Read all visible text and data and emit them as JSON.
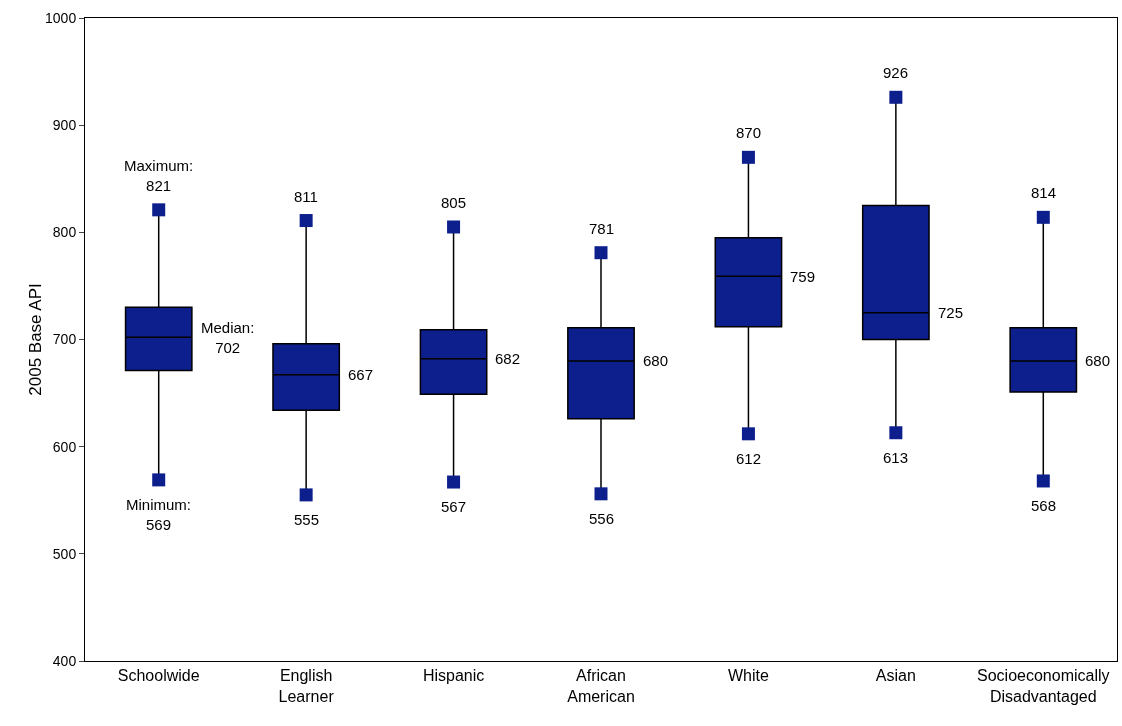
{
  "chart_data": {
    "type": "box",
    "ylabel": "2005 Base API",
    "categories": [
      "Schoolwide",
      "English Learner",
      "Hispanic",
      "African American",
      "White",
      "Asian",
      "Socioeconomically Disadvantaged"
    ],
    "color": "#0d1f8c",
    "boxes": [
      {
        "low": 569,
        "q1": 671,
        "median": 702,
        "q3": 730,
        "high": 821
      },
      {
        "low": 555,
        "q1": 634,
        "median": 667,
        "q3": 696,
        "high": 811
      },
      {
        "low": 567,
        "q1": 649,
        "median": 682,
        "q3": 709,
        "high": 805
      },
      {
        "low": 556,
        "q1": 626,
        "median": 680,
        "q3": 711,
        "high": 781
      },
      {
        "low": 612,
        "q1": 712,
        "median": 759,
        "q3": 795,
        "high": 870
      },
      {
        "low": 613,
        "q1": 700,
        "median": 725,
        "q3": 825,
        "high": 926
      },
      {
        "low": 568,
        "q1": 651,
        "median": 680,
        "q3": 711,
        "high": 814
      }
    ],
    "series": [
      {
        "type": "scatter",
        "color": "#0d1f8c",
        "x": [
          "Schoolwide",
          "English Learner",
          "Hispanic",
          "African American",
          "White",
          "Asian",
          "Socioeconomically Disadvantaged",
          "Schoolwide",
          "English Learner",
          "Hispanic",
          "African American",
          "White",
          "Asian",
          "Socioeconomically Disadvantaged"
        ],
        "values": [
          569,
          555,
          567,
          556,
          612,
          613,
          568,
          821,
          811,
          805,
          781,
          870,
          926,
          814
        ]
      }
    ],
    "ylim": [
      400,
      1000
    ],
    "yticks": [
      400,
      500,
      600,
      700,
      800,
      900,
      1000
    ],
    "marker": "square",
    "grid": false,
    "annotations": [
      {
        "text": "Maximum: 821",
        "x": "Schoolwide",
        "y": 821
      },
      {
        "text": "Median: 702",
        "x": "Schoolwide",
        "y": 702
      },
      {
        "text": "Minimum: 569",
        "x": "Schoolwide",
        "y": 569
      },
      {
        "text": "811",
        "x": "English Learner",
        "y": 811
      },
      {
        "text": "667",
        "x": "English Learner",
        "y": 667
      },
      {
        "text": "555",
        "x": "English Learner",
        "y": 555
      },
      {
        "text": "805",
        "x": "Hispanic",
        "y": 805
      },
      {
        "text": "682",
        "x": "Hispanic",
        "y": 682
      },
      {
        "text": "567",
        "x": "Hispanic",
        "y": 567
      },
      {
        "text": "781",
        "x": "African American",
        "y": 781
      },
      {
        "text": "680",
        "x": "African American",
        "y": 680
      },
      {
        "text": "556",
        "x": "African American",
        "y": 556
      },
      {
        "text": "870",
        "x": "White",
        "y": 870
      },
      {
        "text": "759",
        "x": "White",
        "y": 759
      },
      {
        "text": "612",
        "x": "White",
        "y": 612
      },
      {
        "text": "926",
        "x": "Asian",
        "y": 926
      },
      {
        "text": "725",
        "x": "Asian",
        "y": 725
      },
      {
        "text": "613",
        "x": "Asian",
        "y": 613
      },
      {
        "text": "814",
        "x": "Socioeconomically Disadvantaged",
        "y": 814
      },
      {
        "text": "680",
        "x": "Socioeconomically Disadvantaged",
        "y": 680
      },
      {
        "text": "568",
        "x": "Socioeconomically Disadvantaged",
        "y": 568
      }
    ]
  }
}
